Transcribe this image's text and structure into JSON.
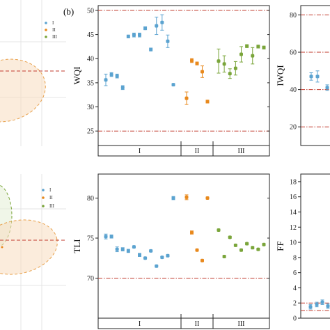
{
  "figure": {
    "panel_label": "(b)"
  },
  "groups": [
    "I",
    "II",
    "III"
  ],
  "colors": {
    "I": "#5ba3d0",
    "II": "#e8891d",
    "III": "#7aa53a",
    "ref_line": "#c0392b",
    "frame": "#222222"
  },
  "legend": {
    "items": [
      "I",
      "II",
      "III"
    ]
  },
  "chart_data": [
    {
      "id": "wqi",
      "type": "scatter",
      "ylabel": "WQI",
      "ylim": [
        22,
        51
      ],
      "yticks": [
        25,
        30,
        35,
        40,
        45,
        50
      ],
      "reference_lines": [
        25,
        50
      ],
      "groups": [
        "I",
        "II",
        "III"
      ],
      "points": [
        {
          "g": "I",
          "y": 35.6,
          "e": 1.2
        },
        {
          "g": "I",
          "y": 36.7,
          "e": 0.4
        },
        {
          "g": "I",
          "y": 36.4,
          "e": 0.4
        },
        {
          "g": "I",
          "y": 34.0,
          "e": 0.4
        },
        {
          "g": "I",
          "y": 44.6,
          "e": 0.3
        },
        {
          "g": "I",
          "y": 44.9,
          "e": 0.4
        },
        {
          "g": "I",
          "y": 44.9,
          "e": 0.4
        },
        {
          "g": "I",
          "y": 46.3,
          "e": 0.3
        },
        {
          "g": "I",
          "y": 41.9,
          "e": 0.3
        },
        {
          "g": "I",
          "y": 46.8,
          "e": 1.8
        },
        {
          "g": "I",
          "y": 47.5,
          "e": 1.6
        },
        {
          "g": "I",
          "y": 43.6,
          "e": 1.3
        },
        {
          "g": "I",
          "y": 34.6,
          "e": 0.2
        },
        {
          "g": "II",
          "y": 31.8,
          "e": 1.3
        },
        {
          "g": "II",
          "y": 39.6,
          "e": 0.4
        },
        {
          "g": "II",
          "y": 39.0,
          "e": 0.3
        },
        {
          "g": "II",
          "y": 37.3,
          "e": 1.2
        },
        {
          "g": "II",
          "y": 31.1,
          "e": 0.3
        },
        {
          "g": "III",
          "y": 39.5,
          "e": 2.5
        },
        {
          "g": "III",
          "y": 38.9,
          "e": 1.7
        },
        {
          "g": "III",
          "y": 36.9,
          "e": 1.0
        },
        {
          "g": "III",
          "y": 38.0,
          "e": 1.4
        },
        {
          "g": "III",
          "y": 40.9,
          "e": 1.6
        },
        {
          "g": "III",
          "y": 42.6,
          "e": 0.3
        },
        {
          "g": "III",
          "y": 40.6,
          "e": 1.7
        },
        {
          "g": "III",
          "y": 42.5,
          "e": 0.3
        },
        {
          "g": "III",
          "y": 42.3,
          "e": 0.3
        }
      ]
    },
    {
      "id": "tli",
      "type": "scatter",
      "ylabel": "TLI",
      "ylim": [
        65,
        83
      ],
      "yticks": [
        70,
        75,
        80
      ],
      "reference_lines": [
        70
      ],
      "groups": [
        "I",
        "II",
        "III"
      ],
      "points": [
        {
          "g": "I",
          "y": 75.2,
          "e": 0.3
        },
        {
          "g": "I",
          "y": 75.2,
          "e": 0.2
        },
        {
          "g": "I",
          "y": 73.6,
          "e": 0.3
        },
        {
          "g": "I",
          "y": 73.6,
          "e": 0.2
        },
        {
          "g": "I",
          "y": 73.4,
          "e": 0.2
        },
        {
          "g": "I",
          "y": 73.9,
          "e": 0.1
        },
        {
          "g": "I",
          "y": 72.9,
          "e": 0.2
        },
        {
          "g": "I",
          "y": 72.5,
          "e": 0.1
        },
        {
          "g": "I",
          "y": 73.4,
          "e": 0.1
        },
        {
          "g": "I",
          "y": 71.5,
          "e": 0.1
        },
        {
          "g": "I",
          "y": 72.6,
          "e": 0.1
        },
        {
          "g": "I",
          "y": 72.8,
          "e": 0.1
        },
        {
          "g": "I",
          "y": 80.0,
          "e": 0.2
        },
        {
          "g": "II",
          "y": 80.1,
          "e": 0.3
        },
        {
          "g": "II",
          "y": 75.7,
          "e": 0.2
        },
        {
          "g": "II",
          "y": 73.5,
          "e": 0.1
        },
        {
          "g": "II",
          "y": 72.2,
          "e": 0.1
        },
        {
          "g": "II",
          "y": 80.0,
          "e": 0.1
        },
        {
          "g": "III",
          "y": 76.0,
          "e": 0.1
        },
        {
          "g": "III",
          "y": 72.7,
          "e": 0.1
        },
        {
          "g": "III",
          "y": 75.1,
          "e": 0.1
        },
        {
          "g": "III",
          "y": 74.1,
          "e": 0.1
        },
        {
          "g": "III",
          "y": 73.5,
          "e": 0.1
        },
        {
          "g": "III",
          "y": 74.3,
          "e": 0.1
        },
        {
          "g": "III",
          "y": 73.8,
          "e": 0.1
        },
        {
          "g": "III",
          "y": 73.6,
          "e": 0.1
        },
        {
          "g": "III",
          "y": 74.2,
          "e": 0.1
        }
      ]
    },
    {
      "id": "iwqi",
      "type": "scatter",
      "ylabel": "IWQI",
      "ylim": [
        10,
        85
      ],
      "yticks": [
        20,
        40,
        60,
        80
      ],
      "reference_lines": [
        20,
        40,
        60,
        80
      ],
      "points": [
        {
          "g": "I",
          "y": 47.0,
          "e": 2.0
        },
        {
          "g": "I",
          "y": 47.0,
          "e": 3.0
        },
        {
          "g": "I",
          "y": 41.0,
          "e": 1.5
        }
      ]
    },
    {
      "id": "ff",
      "type": "scatter",
      "ylabel": "FF",
      "ylim": [
        0,
        19
      ],
      "yticks": [
        0,
        2,
        4,
        6,
        8,
        10,
        12,
        14,
        16,
        18
      ],
      "reference_lines": [
        1,
        2
      ],
      "points": [
        {
          "g": "I",
          "y": 1.5,
          "e": 0.3
        },
        {
          "g": "I",
          "y": 1.8,
          "e": 0.3
        },
        {
          "g": "I",
          "y": 2.1,
          "e": 0.3
        },
        {
          "g": "I",
          "y": 1.6,
          "e": 0.3
        }
      ]
    }
  ]
}
